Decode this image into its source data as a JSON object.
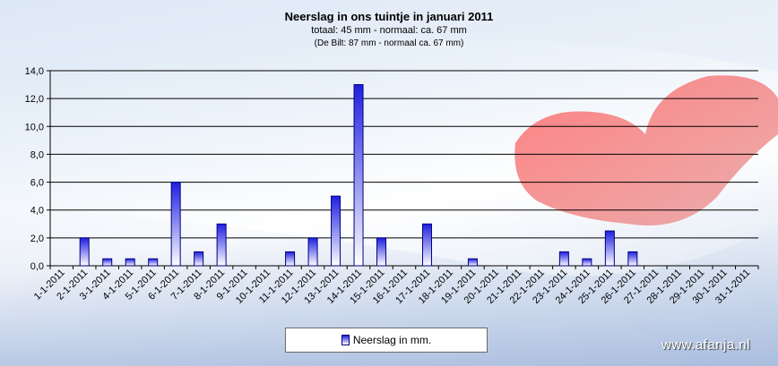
{
  "chart_data": {
    "type": "bar",
    "title": "Neerslag in ons tuintje in januari 2011",
    "subtitle": "totaal: 45 mm  - normaal:  ca. 67 mm",
    "subtitle2": "(De Bilt: 87 mm - normaal ca. 67 mm)",
    "xlabel": "",
    "ylabel": "",
    "ylim": [
      0,
      14
    ],
    "ytick_step": 2,
    "ytick_labels": [
      "0,0",
      "2,0",
      "4,0",
      "6,0",
      "8,0",
      "10,0",
      "12,0",
      "14,0"
    ],
    "grid": true,
    "legend_position": "bottom-center",
    "categories": [
      "1-1-2011",
      "2-1-2011",
      "3-1-2011",
      "4-1-2011",
      "5-1-2011",
      "6-1-2011",
      "7-1-2011",
      "8-1-2011",
      "9-1-2011",
      "10-1-2011",
      "11-1-2011",
      "12-1-2011",
      "13-1-2011",
      "14-1-2011",
      "15-1-2011",
      "16-1-2011",
      "17-1-2011",
      "18-1-2011",
      "19-1-2011",
      "20-1-2011",
      "21-1-2011",
      "22-1-2011",
      "23-1-2011",
      "24-1-2011",
      "25-1-2011",
      "26-1-2011",
      "27-1-2011",
      "28-1-2011",
      "29-1-2011",
      "30-1-2011",
      "31-1-2011"
    ],
    "series": [
      {
        "name": "Neerslag in mm.",
        "values": [
          0,
          2,
          0.5,
          0.5,
          0.5,
          6,
          1,
          3,
          0,
          0,
          1,
          2,
          5,
          13,
          2,
          0,
          3,
          0,
          0.5,
          0,
          0,
          0,
          1,
          0.5,
          2.5,
          1,
          0,
          0,
          0,
          0,
          0
        ]
      }
    ],
    "colors": {
      "bar_top": "#1e1ee0",
      "bar_bottom": "#ffffff",
      "bar_border": "#000080"
    }
  },
  "watermark": "www.afanja.nl"
}
